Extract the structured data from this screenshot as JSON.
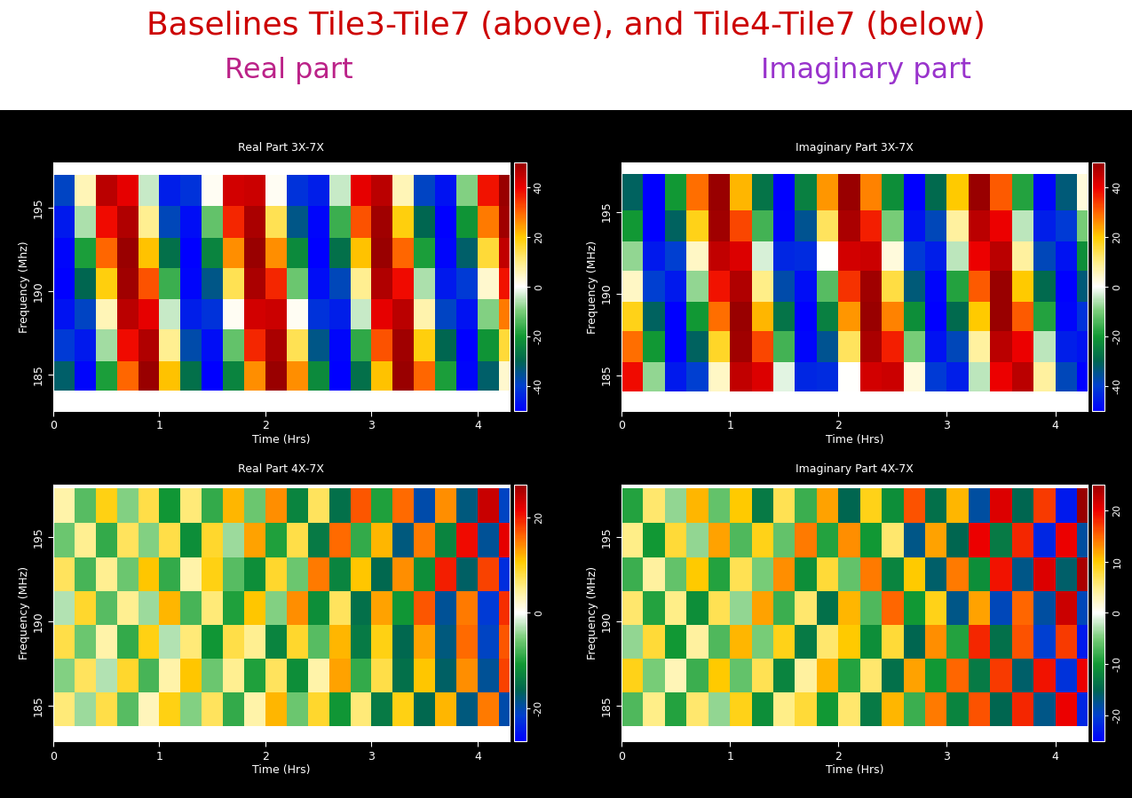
{
  "header": {
    "title": "Baselines Tile3-Tile7 (above), and Tile4-Tile7 (below)",
    "columns": [
      "Real part",
      "Imaginary part"
    ]
  },
  "chart_data": [
    {
      "type": "heatmap",
      "title": "Real Part 3X-7X",
      "x_label": "Time (Hrs)",
      "y_label": "Frequency (Mhz)",
      "xlim": [
        0,
        4.3
      ],
      "ylim": [
        182.8,
        197.7
      ],
      "xticks": [
        0,
        1,
        2,
        3,
        4
      ],
      "yticks": [
        185,
        190,
        195
      ],
      "time_edges": [
        0,
        0.2,
        0.4,
        0.6,
        0.8,
        1.0,
        1.2,
        1.4,
        1.6,
        1.8,
        2.0,
        2.2,
        2.4,
        2.6,
        2.8,
        3.0,
        3.2,
        3.4,
        3.6,
        3.8,
        4.0,
        4.2,
        4.3
      ],
      "freq_edges": [
        184,
        185.8,
        187.7,
        189.5,
        191.4,
        193.2,
        195.1,
        197
      ],
      "cells": [
        [
          -32,
          -49,
          -19,
          30,
          50,
          21,
          -28,
          -50,
          -24,
          26,
          50,
          26,
          -23,
          -50,
          -28,
          21,
          50,
          30,
          -19,
          -49,
          -32,
          4
        ],
        [
          -41,
          -46,
          -7,
          39,
          47,
          9,
          -37,
          -48,
          -12,
          36,
          48,
          14,
          -34,
          -49,
          -17,
          32,
          49,
          19,
          -30,
          -50,
          -21,
          16
        ],
        [
          -47,
          -39,
          6,
          46,
          41,
          -4,
          -45,
          -42,
          1,
          43,
          44,
          1,
          -42,
          -45,
          -4,
          41,
          46,
          7,
          -39,
          -47,
          -9,
          28
        ],
        [
          -50,
          -30,
          19,
          49,
          32,
          -16,
          -49,
          -34,
          14,
          48,
          36,
          -11,
          -48,
          -38,
          9,
          47,
          39,
          -6,
          -46,
          -41,
          4,
          38
        ],
        [
          -49,
          -19,
          30,
          50,
          21,
          -28,
          -50,
          -24,
          26,
          50,
          26,
          -23,
          -50,
          -28,
          21,
          50,
          30,
          -19,
          -49,
          -32,
          16,
          45
        ],
        [
          -46,
          -6,
          39,
          47,
          9,
          -38,
          -48,
          -12,
          36,
          48,
          14,
          -34,
          -49,
          -16,
          32,
          49,
          19,
          -30,
          -50,
          -21,
          28,
          49
        ],
        [
          -39,
          6,
          46,
          41,
          -4,
          -45,
          -42,
          1,
          43,
          44,
          1,
          -42,
          -45,
          -4,
          41,
          46,
          6,
          -39,
          -47,
          -9,
          38,
          50
        ]
      ],
      "clim": [
        -50,
        50
      ],
      "cticks": [
        -40,
        -20,
        0,
        20,
        40
      ]
    },
    {
      "type": "heatmap",
      "title": "Imaginary Part 3X-7X",
      "x_label": "Time (Hrs)",
      "y_label": "Frequency (MHz)",
      "xlim": [
        0,
        4.3
      ],
      "ylim": [
        182.8,
        198.0
      ],
      "xticks": [
        0,
        1,
        2,
        3,
        4
      ],
      "yticks": [
        185,
        190,
        195
      ],
      "time_edges": [
        0,
        0.2,
        0.4,
        0.6,
        0.8,
        1.0,
        1.2,
        1.4,
        1.6,
        1.8,
        2.0,
        2.2,
        2.4,
        2.6,
        2.8,
        3.0,
        3.2,
        3.4,
        3.6,
        3.8,
        4.0,
        4.2,
        4.3
      ],
      "freq_edges": [
        184,
        185.8,
        187.7,
        189.5,
        191.4,
        193.2,
        195.1,
        197.3
      ],
      "cells": [
        [
          39,
          -8,
          -46,
          -40,
          5,
          45,
          42,
          -2,
          -44,
          -43,
          0,
          43,
          44,
          3,
          -41,
          -45,
          -5,
          40,
          46,
          8,
          -38,
          -50
        ],
        [
          29,
          -20,
          -50,
          -31,
          17,
          49,
          33,
          -15,
          -49,
          -35,
          13,
          48,
          37,
          -10,
          -47,
          -38,
          8,
          46,
          40,
          -5,
          -45,
          -47
        ],
        [
          18,
          -31,
          -50,
          -20,
          29,
          50,
          22,
          -27,
          -50,
          -25,
          25,
          50,
          27,
          -22,
          -50,
          -29,
          20,
          50,
          31,
          -18,
          -49,
          -42
        ],
        [
          5,
          -40,
          -46,
          -8,
          38,
          47,
          10,
          -37,
          -48,
          -13,
          35,
          49,
          15,
          -33,
          -49,
          -18,
          31,
          50,
          20,
          -29,
          -50,
          -33
        ],
        [
          -8,
          -46,
          -40,
          5,
          45,
          42,
          -3,
          -44,
          -43,
          0,
          43,
          44,
          3,
          -41,
          -45,
          -5,
          40,
          46,
          8,
          -38,
          -47,
          -22
        ],
        [
          -20,
          -50,
          -31,
          18,
          49,
          33,
          -15,
          -49,
          -35,
          13,
          48,
          37,
          -10,
          -47,
          -38,
          8,
          46,
          40,
          -5,
          -45,
          -41,
          -10
        ],
        [
          -31,
          -50,
          -20,
          29,
          50,
          22,
          -27,
          -50,
          -25,
          25,
          50,
          27,
          -22,
          -50,
          -29,
          20,
          50,
          31,
          -18,
          -49,
          -33,
          3
        ]
      ],
      "clim": [
        -50,
        50
      ],
      "cticks": [
        -40,
        -20,
        0,
        20,
        40
      ]
    },
    {
      "type": "heatmap",
      "title": "Real Part 4X-7X",
      "x_label": "Time (Hrs)",
      "y_label": "Frequency (MHz)",
      "xlim": [
        0,
        4.3
      ],
      "ylim": [
        182.9,
        198.1
      ],
      "xticks": [
        0,
        1,
        2,
        3,
        4
      ],
      "yticks": [
        185,
        190,
        195
      ],
      "time_edges": [
        0,
        0.2,
        0.4,
        0.6,
        0.8,
        1.0,
        1.2,
        1.4,
        1.6,
        1.8,
        2.0,
        2.2,
        2.4,
        2.6,
        2.8,
        3.0,
        3.2,
        3.4,
        3.6,
        3.8,
        4.0,
        4.2,
        4.3
      ],
      "freq_edges": [
        183.8,
        185.8,
        187.8,
        189.8,
        191.8,
        193.8,
        195.8,
        197.9
      ],
      "cells": [
        [
          6,
          -4,
          8,
          -7,
          3,
          10,
          -5,
          7,
          -9,
          4,
          12,
          -6,
          9,
          -11,
          6,
          -14,
          10,
          -16,
          12,
          -18,
          15,
          -20
        ],
        [
          -5,
          7,
          -3,
          9,
          -8,
          4,
          11,
          -6,
          5,
          -10,
          7,
          -12,
          4,
          13,
          -9,
          8,
          -15,
          11,
          -17,
          14,
          -19,
          18
        ],
        [
          8,
          -6,
          4,
          -9,
          10,
          -3,
          6,
          -11,
          8,
          5,
          -13,
          9,
          -7,
          12,
          -14,
          10,
          -16,
          13,
          -18,
          16,
          -21,
          17
        ],
        [
          -3,
          9,
          -7,
          5,
          -4,
          12,
          -8,
          6,
          -10,
          11,
          -5,
          14,
          -12,
          7,
          -15,
          13,
          -11,
          17,
          -19,
          15,
          -22,
          19
        ],
        [
          7,
          -8,
          5,
          -6,
          11,
          -9,
          4,
          10,
          -7,
          -12,
          9,
          -6,
          15,
          -13,
          11,
          -16,
          14,
          -12,
          20,
          -17,
          18,
          -23
        ],
        [
          -6,
          5,
          -9,
          7,
          -5,
          8,
          -12,
          9,
          -4,
          13,
          -10,
          8,
          -14,
          16,
          -9,
          12,
          -18,
          15,
          -13,
          21,
          -19,
          22
        ],
        [
          4,
          -7,
          10,
          -5,
          8,
          -11,
          6,
          -9,
          12,
          -6,
          14,
          -13,
          7,
          -15,
          17,
          -10,
          16,
          -20,
          14,
          -18,
          24,
          -21
        ]
      ],
      "clim": [
        -27,
        27
      ],
      "cticks": [
        -20,
        0,
        20
      ]
    },
    {
      "type": "heatmap",
      "title": "Imaginary Part 4X-7X",
      "x_label": "Time (Hrs)",
      "y_label": "Frequency (MHz)",
      "xlim": [
        0,
        4.3
      ],
      "ylim": [
        182.9,
        198.1
      ],
      "xticks": [
        0,
        1,
        2,
        3,
        4
      ],
      "yticks": [
        185,
        190,
        195
      ],
      "time_edges": [
        0,
        0.2,
        0.4,
        0.6,
        0.8,
        1.0,
        1.2,
        1.4,
        1.6,
        1.8,
        2.0,
        2.2,
        2.4,
        2.6,
        2.8,
        3.0,
        3.2,
        3.4,
        3.6,
        3.8,
        4.0,
        4.2,
        4.3
      ],
      "freq_edges": [
        183.8,
        185.8,
        187.8,
        189.8,
        191.8,
        193.8,
        195.8,
        197.9
      ],
      "cells": [
        [
          -7,
          5,
          -9,
          6,
          -4,
          9,
          -11,
          5,
          8,
          -10,
          6,
          -13,
          11,
          -8,
          14,
          -12,
          16,
          -15,
          18,
          -17,
          20,
          -22
        ],
        [
          9,
          -5,
          3,
          -8,
          10,
          -6,
          7,
          -12,
          4,
          11,
          -9,
          6,
          -14,
          12,
          -10,
          15,
          -13,
          17,
          -16,
          19,
          -21,
          20
        ],
        [
          -4,
          8,
          -10,
          4,
          -7,
          11,
          -5,
          9,
          -13,
          6,
          10,
          -11,
          8,
          -15,
          13,
          -9,
          18,
          -14,
          16,
          -20,
          17,
          -23
        ],
        [
          6,
          -9,
          5,
          -11,
          7,
          -4,
          12,
          -8,
          6,
          -14,
          11,
          -7,
          15,
          -10,
          9,
          -17,
          12,
          -19,
          15,
          -18,
          22,
          -19
        ],
        [
          -8,
          4,
          -6,
          10,
          -9,
          7,
          -5,
          13,
          -11,
          8,
          -6,
          14,
          -12,
          10,
          -16,
          14,
          -11,
          19,
          -17,
          21,
          -16,
          24
        ],
        [
          5,
          -10,
          8,
          -4,
          12,
          -7,
          9,
          -6,
          14,
          -9,
          13,
          -10,
          6,
          -17,
          12,
          -15,
          20,
          -13,
          18,
          -22,
          20,
          -18
        ],
        [
          -9,
          6,
          -4,
          11,
          -6,
          10,
          -13,
          7,
          -8,
          12,
          -15,
          9,
          -11,
          16,
          -14,
          11,
          -18,
          21,
          -15,
          17,
          -23,
          25
        ]
      ],
      "clim": [
        -25,
        25
      ],
      "cticks": [
        -20,
        -10,
        0,
        10,
        20
      ]
    }
  ]
}
